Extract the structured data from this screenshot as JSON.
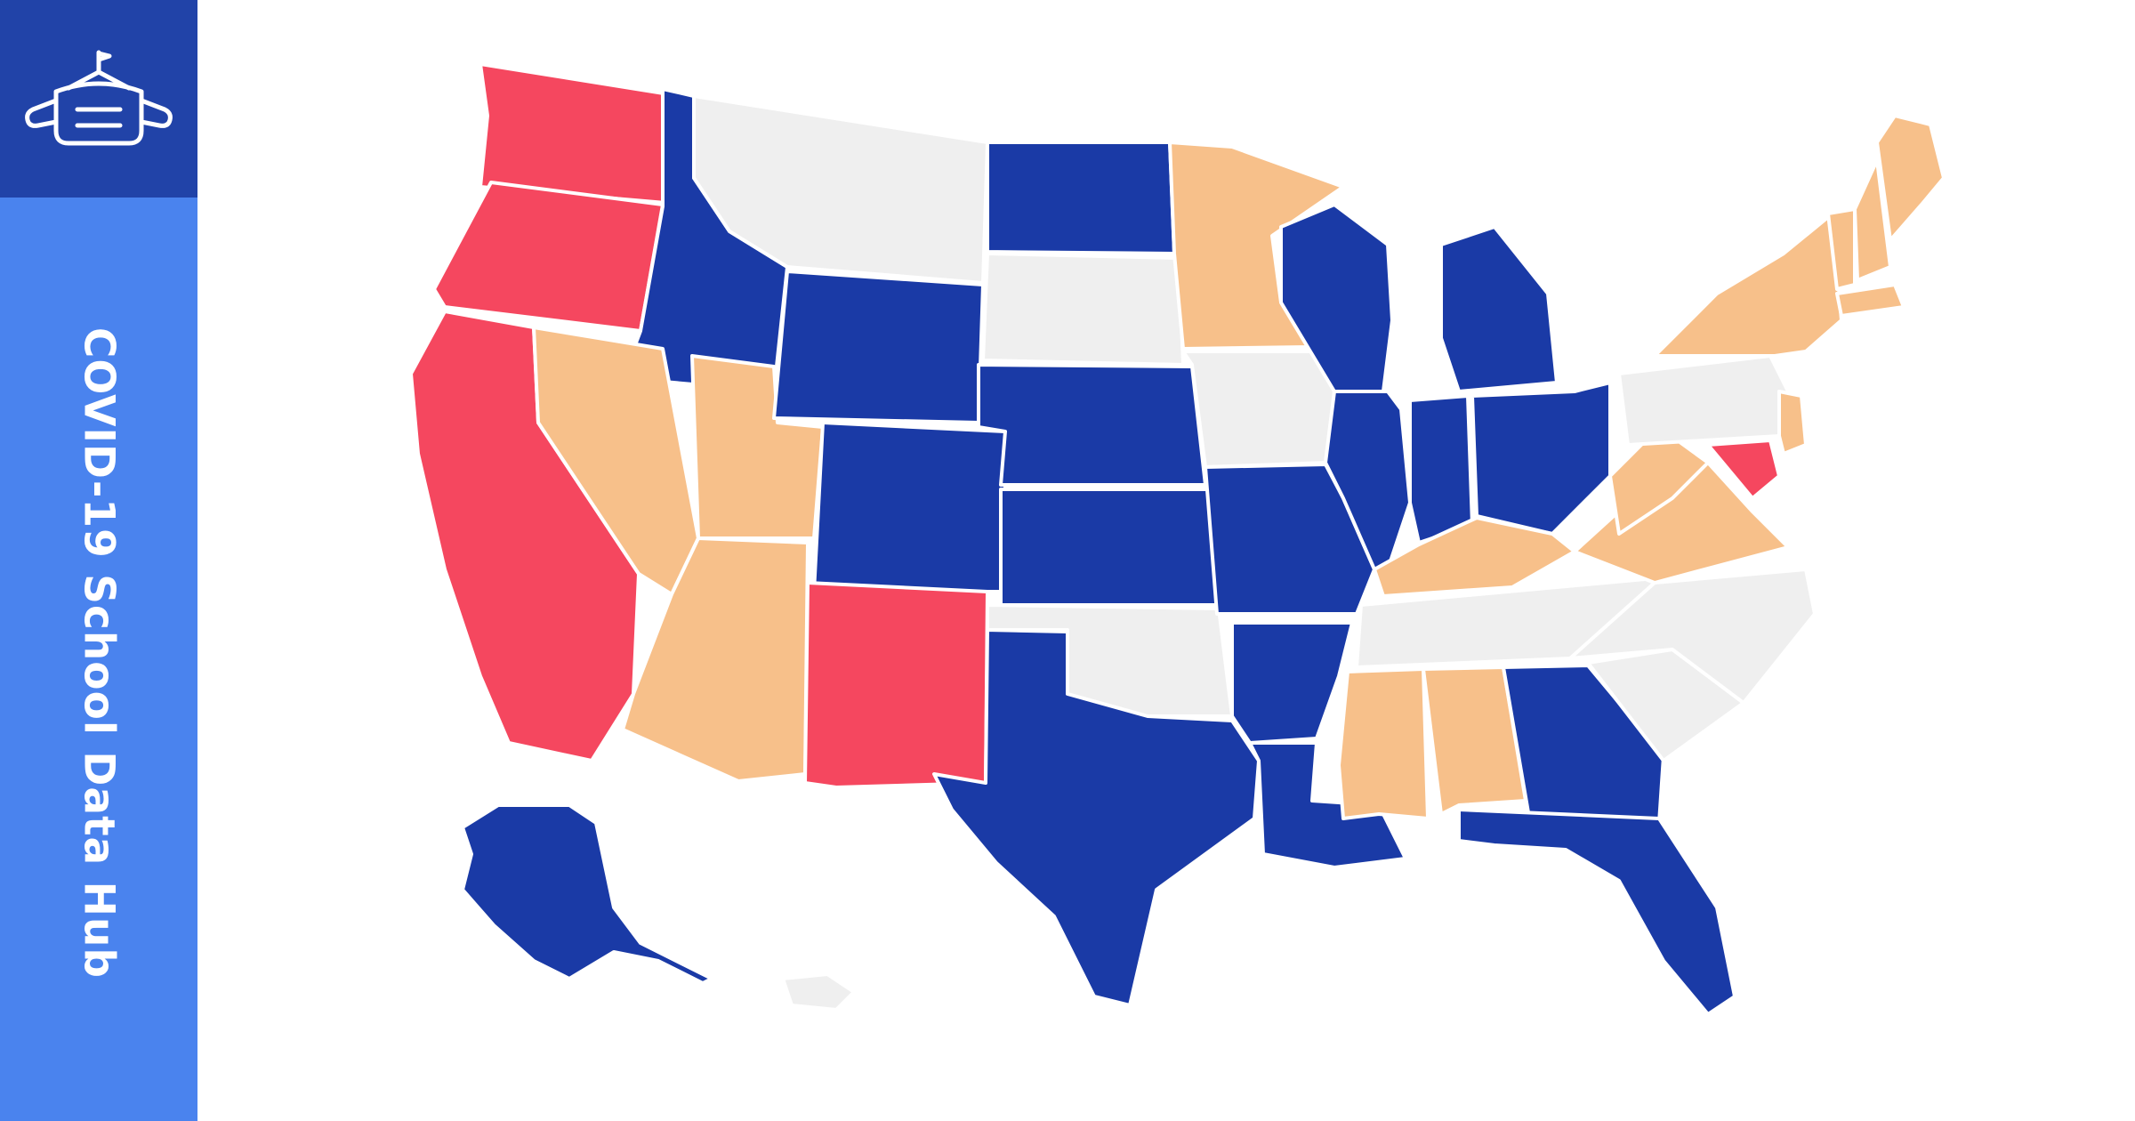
{
  "sidebar": {
    "title": "COVID-19 School Data Hub",
    "logo_icon": "school-building-icon",
    "colors": {
      "panel": "#4a83ee",
      "logo_panel": "#2143a8",
      "text": "#ffffff"
    }
  },
  "map": {
    "type": "choropleth",
    "region": "United States school districts",
    "colors": {
      "blue": "#1a3aa6",
      "red": "#f5475f",
      "orange": "#f7c08a",
      "no_data": "#efefef",
      "borders": "#ffffff"
    },
    "states": [
      {
        "id": "WA",
        "fill": "red"
      },
      {
        "id": "OR",
        "fill": "red"
      },
      {
        "id": "CA",
        "fill": "red"
      },
      {
        "id": "ID",
        "fill": "blue"
      },
      {
        "id": "NV",
        "fill": "orange"
      },
      {
        "id": "UT",
        "fill": "orange"
      },
      {
        "id": "AZ",
        "fill": "orange"
      },
      {
        "id": "MT",
        "fill": "no_data"
      },
      {
        "id": "WY",
        "fill": "blue"
      },
      {
        "id": "CO",
        "fill": "blue"
      },
      {
        "id": "NM",
        "fill": "red"
      },
      {
        "id": "ND",
        "fill": "blue"
      },
      {
        "id": "SD",
        "fill": "no_data"
      },
      {
        "id": "NE",
        "fill": "blue"
      },
      {
        "id": "KS",
        "fill": "blue"
      },
      {
        "id": "OK",
        "fill": "no_data"
      },
      {
        "id": "TX",
        "fill": "blue"
      },
      {
        "id": "MN",
        "fill": "orange"
      },
      {
        "id": "IA",
        "fill": "no_data"
      },
      {
        "id": "MO",
        "fill": "blue"
      },
      {
        "id": "AR",
        "fill": "blue"
      },
      {
        "id": "LA",
        "fill": "blue"
      },
      {
        "id": "WI",
        "fill": "blue"
      },
      {
        "id": "IL",
        "fill": "blue"
      },
      {
        "id": "MI",
        "fill": "blue"
      },
      {
        "id": "IN",
        "fill": "blue"
      },
      {
        "id": "OH",
        "fill": "blue"
      },
      {
        "id": "KY",
        "fill": "orange"
      },
      {
        "id": "TN",
        "fill": "no_data"
      },
      {
        "id": "MS",
        "fill": "orange"
      },
      {
        "id": "AL",
        "fill": "orange"
      },
      {
        "id": "GA",
        "fill": "blue"
      },
      {
        "id": "FL",
        "fill": "blue"
      },
      {
        "id": "SC",
        "fill": "no_data"
      },
      {
        "id": "NC",
        "fill": "no_data"
      },
      {
        "id": "VA",
        "fill": "orange"
      },
      {
        "id": "WV",
        "fill": "orange"
      },
      {
        "id": "PA",
        "fill": "no_data"
      },
      {
        "id": "NY",
        "fill": "orange"
      },
      {
        "id": "VT",
        "fill": "orange"
      },
      {
        "id": "NH",
        "fill": "orange"
      },
      {
        "id": "ME",
        "fill": "orange"
      },
      {
        "id": "MA",
        "fill": "orange"
      },
      {
        "id": "NJ",
        "fill": "orange"
      },
      {
        "id": "MD",
        "fill": "red"
      },
      {
        "id": "AK",
        "fill": "blue"
      },
      {
        "id": "HI",
        "fill": "no_data"
      }
    ]
  }
}
